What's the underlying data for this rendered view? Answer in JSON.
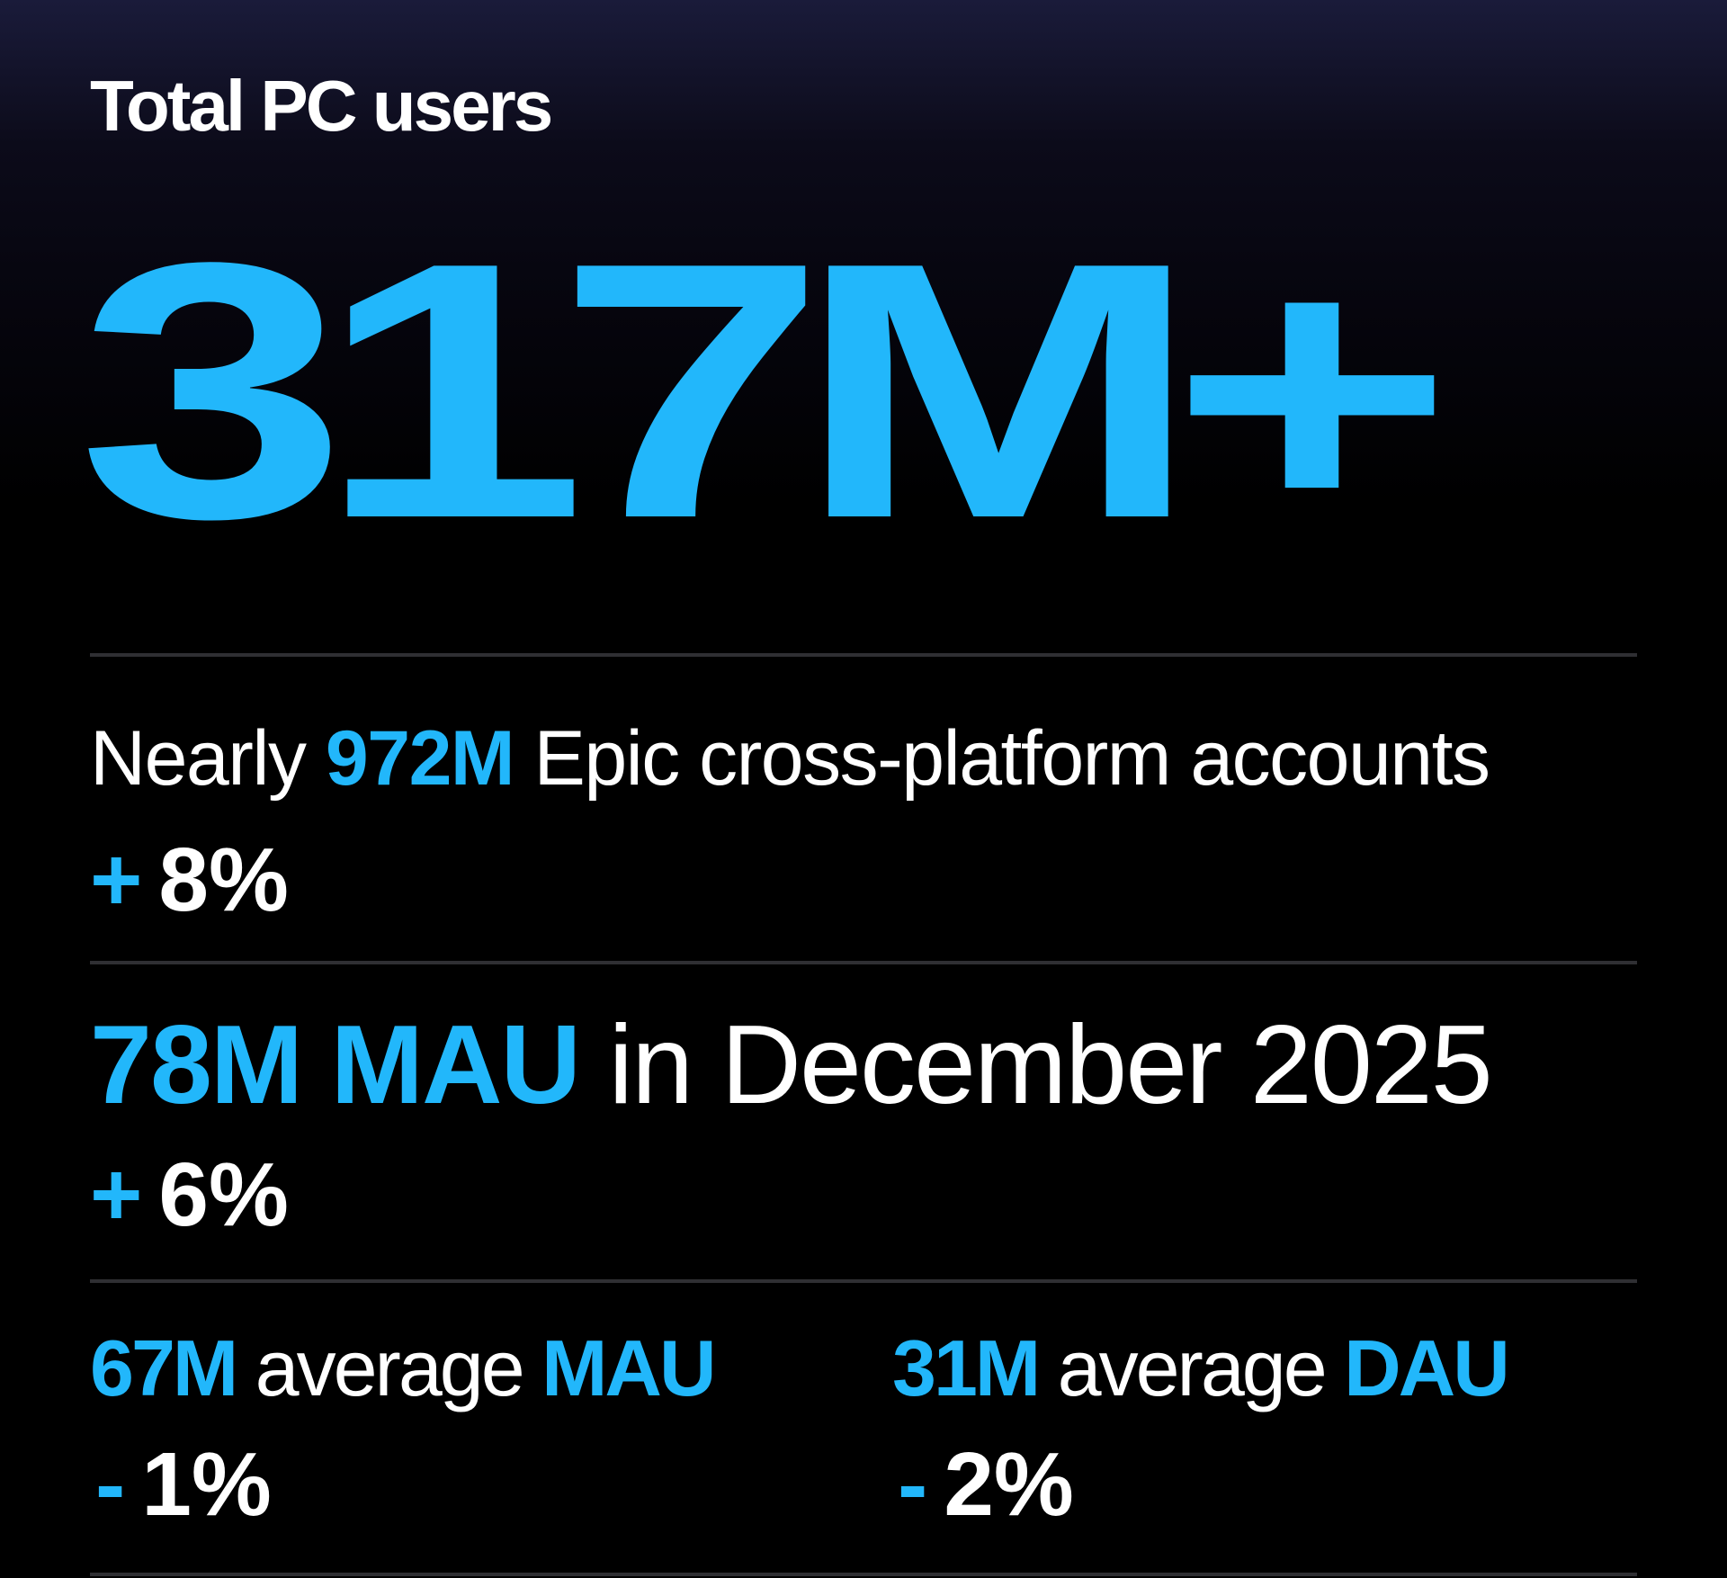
{
  "title": "Total PC users",
  "headline": "317M+",
  "colors": {
    "accent": "#22b7fb",
    "text": "#ffffff",
    "background": "#000000",
    "gradient_top": "#1a1b3a",
    "divider": "#2f2f33"
  },
  "stats": [
    {
      "prefix": "Nearly",
      "value": "972M",
      "text": "Epic cross-platform accounts",
      "change_sign": "+",
      "change_value": "8%"
    },
    {
      "value": "78M MAU",
      "text": "in December 2025",
      "change_sign": "+",
      "change_value": "6%"
    },
    {
      "value": "67M",
      "text": "average",
      "metric": "MAU",
      "change_sign": "-",
      "change_value": "1%"
    },
    {
      "value": "31M",
      "text": "average",
      "metric": "DAU",
      "change_sign": "-",
      "change_value": "2%"
    }
  ]
}
